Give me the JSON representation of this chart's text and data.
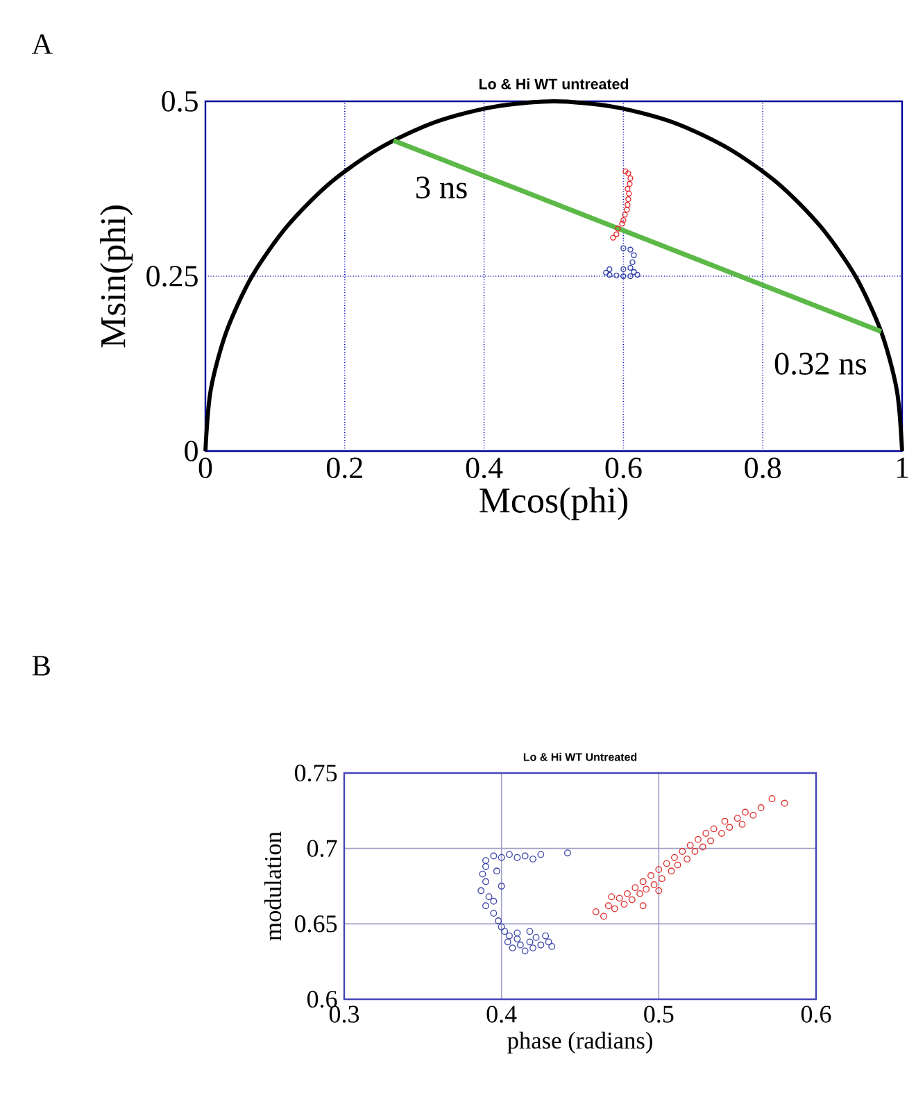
{
  "chart_data": [
    {
      "type": "scatter",
      "title": "Lo & Hi WT untreated",
      "xlabel": "Mcos(phi)",
      "ylabel": "Msin(phi)",
      "xlim": [
        0,
        1
      ],
      "ylim": [
        0,
        0.5
      ],
      "xticks": [
        0,
        0.2,
        0.4,
        0.6,
        0.8,
        1
      ],
      "yticks": [
        0,
        0.25,
        0.5
      ],
      "grid": true,
      "annotations": [
        "A",
        {
          "text": "3 ns",
          "x": 0.27,
          "y": 0.444
        },
        {
          "text": "0.32 ns",
          "x": 0.97,
          "y": 0.171
        }
      ],
      "series": [
        {
          "type": "line",
          "color": "#000000",
          "x": [
            0,
            0.0076,
            0.0302,
            0.067,
            0.117,
            0.1786,
            0.25,
            0.329,
            0.4132,
            0.5,
            0.5868,
            0.671,
            0.75,
            0.8214,
            0.883,
            0.933,
            0.9698,
            0.9924,
            1
          ],
          "values": [
            0,
            0.087,
            0.171,
            0.25,
            0.321,
            0.383,
            0.433,
            0.47,
            0.492,
            0.5,
            0.492,
            0.47,
            0.433,
            0.383,
            0.321,
            0.25,
            0.171,
            0.087,
            0
          ]
        },
        {
          "type": "line",
          "color": "#5cb947",
          "x": [
            0.27,
            0.97
          ],
          "values": [
            0.444,
            0.171
          ]
        },
        {
          "marker": "circle",
          "color": "#e8262a",
          "x": [
            0.585,
            0.59,
            0.592,
            0.598,
            0.6,
            0.602,
            0.605,
            0.606,
            0.607,
            0.608,
            0.606,
            0.609,
            0.61,
            0.607,
            0.603
          ],
          "values": [
            0.305,
            0.31,
            0.318,
            0.325,
            0.33,
            0.338,
            0.345,
            0.352,
            0.36,
            0.368,
            0.375,
            0.382,
            0.39,
            0.397,
            0.4
          ]
        },
        {
          "marker": "circle",
          "color": "#2e3fa8",
          "x": [
            0.6,
            0.61,
            0.615,
            0.613,
            0.61,
            0.615,
            0.62,
            0.61,
            0.6,
            0.59,
            0.58,
            0.575,
            0.58,
            0.6
          ],
          "values": [
            0.29,
            0.288,
            0.28,
            0.27,
            0.262,
            0.256,
            0.252,
            0.25,
            0.25,
            0.251,
            0.252,
            0.255,
            0.26,
            0.26
          ]
        }
      ]
    },
    {
      "type": "scatter",
      "title": "Lo & Hi WT Untreated",
      "xlabel": "phase (radians)",
      "ylabel": "modulation",
      "xlim": [
        0.3,
        0.6
      ],
      "ylim": [
        0.6,
        0.75
      ],
      "xticks": [
        0.3,
        0.4,
        0.5,
        0.6
      ],
      "yticks": [
        0.6,
        0.65,
        0.7,
        0.75
      ],
      "grid": true,
      "annotations": [
        "B"
      ],
      "series": [
        {
          "marker": "circle",
          "color": "#3a45a8",
          "x": [
            0.39,
            0.395,
            0.4,
            0.405,
            0.41,
            0.415,
            0.42,
            0.425,
            0.442,
            0.39,
            0.388,
            0.39,
            0.387,
            0.392,
            0.39,
            0.395,
            0.398,
            0.4,
            0.402,
            0.405,
            0.41,
            0.404,
            0.412,
            0.418,
            0.42,
            0.425,
            0.43,
            0.428,
            0.415,
            0.41,
            0.422,
            0.407,
            0.432,
            0.418,
            0.395,
            0.4,
            0.397
          ],
          "values": [
            0.692,
            0.695,
            0.694,
            0.696,
            0.694,
            0.695,
            0.693,
            0.696,
            0.697,
            0.688,
            0.683,
            0.678,
            0.672,
            0.668,
            0.662,
            0.657,
            0.652,
            0.648,
            0.645,
            0.642,
            0.64,
            0.638,
            0.636,
            0.638,
            0.634,
            0.636,
            0.638,
            0.642,
            0.632,
            0.644,
            0.641,
            0.634,
            0.635,
            0.645,
            0.665,
            0.675,
            0.685
          ]
        },
        {
          "marker": "circle",
          "color": "#e03030",
          "x": [
            0.46,
            0.465,
            0.468,
            0.472,
            0.475,
            0.478,
            0.48,
            0.483,
            0.485,
            0.488,
            0.49,
            0.492,
            0.495,
            0.497,
            0.5,
            0.502,
            0.505,
            0.508,
            0.51,
            0.512,
            0.515,
            0.518,
            0.52,
            0.523,
            0.525,
            0.528,
            0.53,
            0.533,
            0.535,
            0.54,
            0.542,
            0.545,
            0.55,
            0.553,
            0.555,
            0.56,
            0.565,
            0.572,
            0.58,
            0.47,
            0.49,
            0.5
          ],
          "values": [
            0.658,
            0.655,
            0.662,
            0.66,
            0.667,
            0.663,
            0.67,
            0.666,
            0.674,
            0.67,
            0.678,
            0.673,
            0.682,
            0.676,
            0.686,
            0.68,
            0.69,
            0.685,
            0.694,
            0.689,
            0.698,
            0.693,
            0.702,
            0.698,
            0.706,
            0.701,
            0.71,
            0.705,
            0.713,
            0.71,
            0.718,
            0.714,
            0.72,
            0.716,
            0.724,
            0.722,
            0.727,
            0.733,
            0.73,
            0.668,
            0.662,
            0.672
          ]
        }
      ]
    }
  ]
}
